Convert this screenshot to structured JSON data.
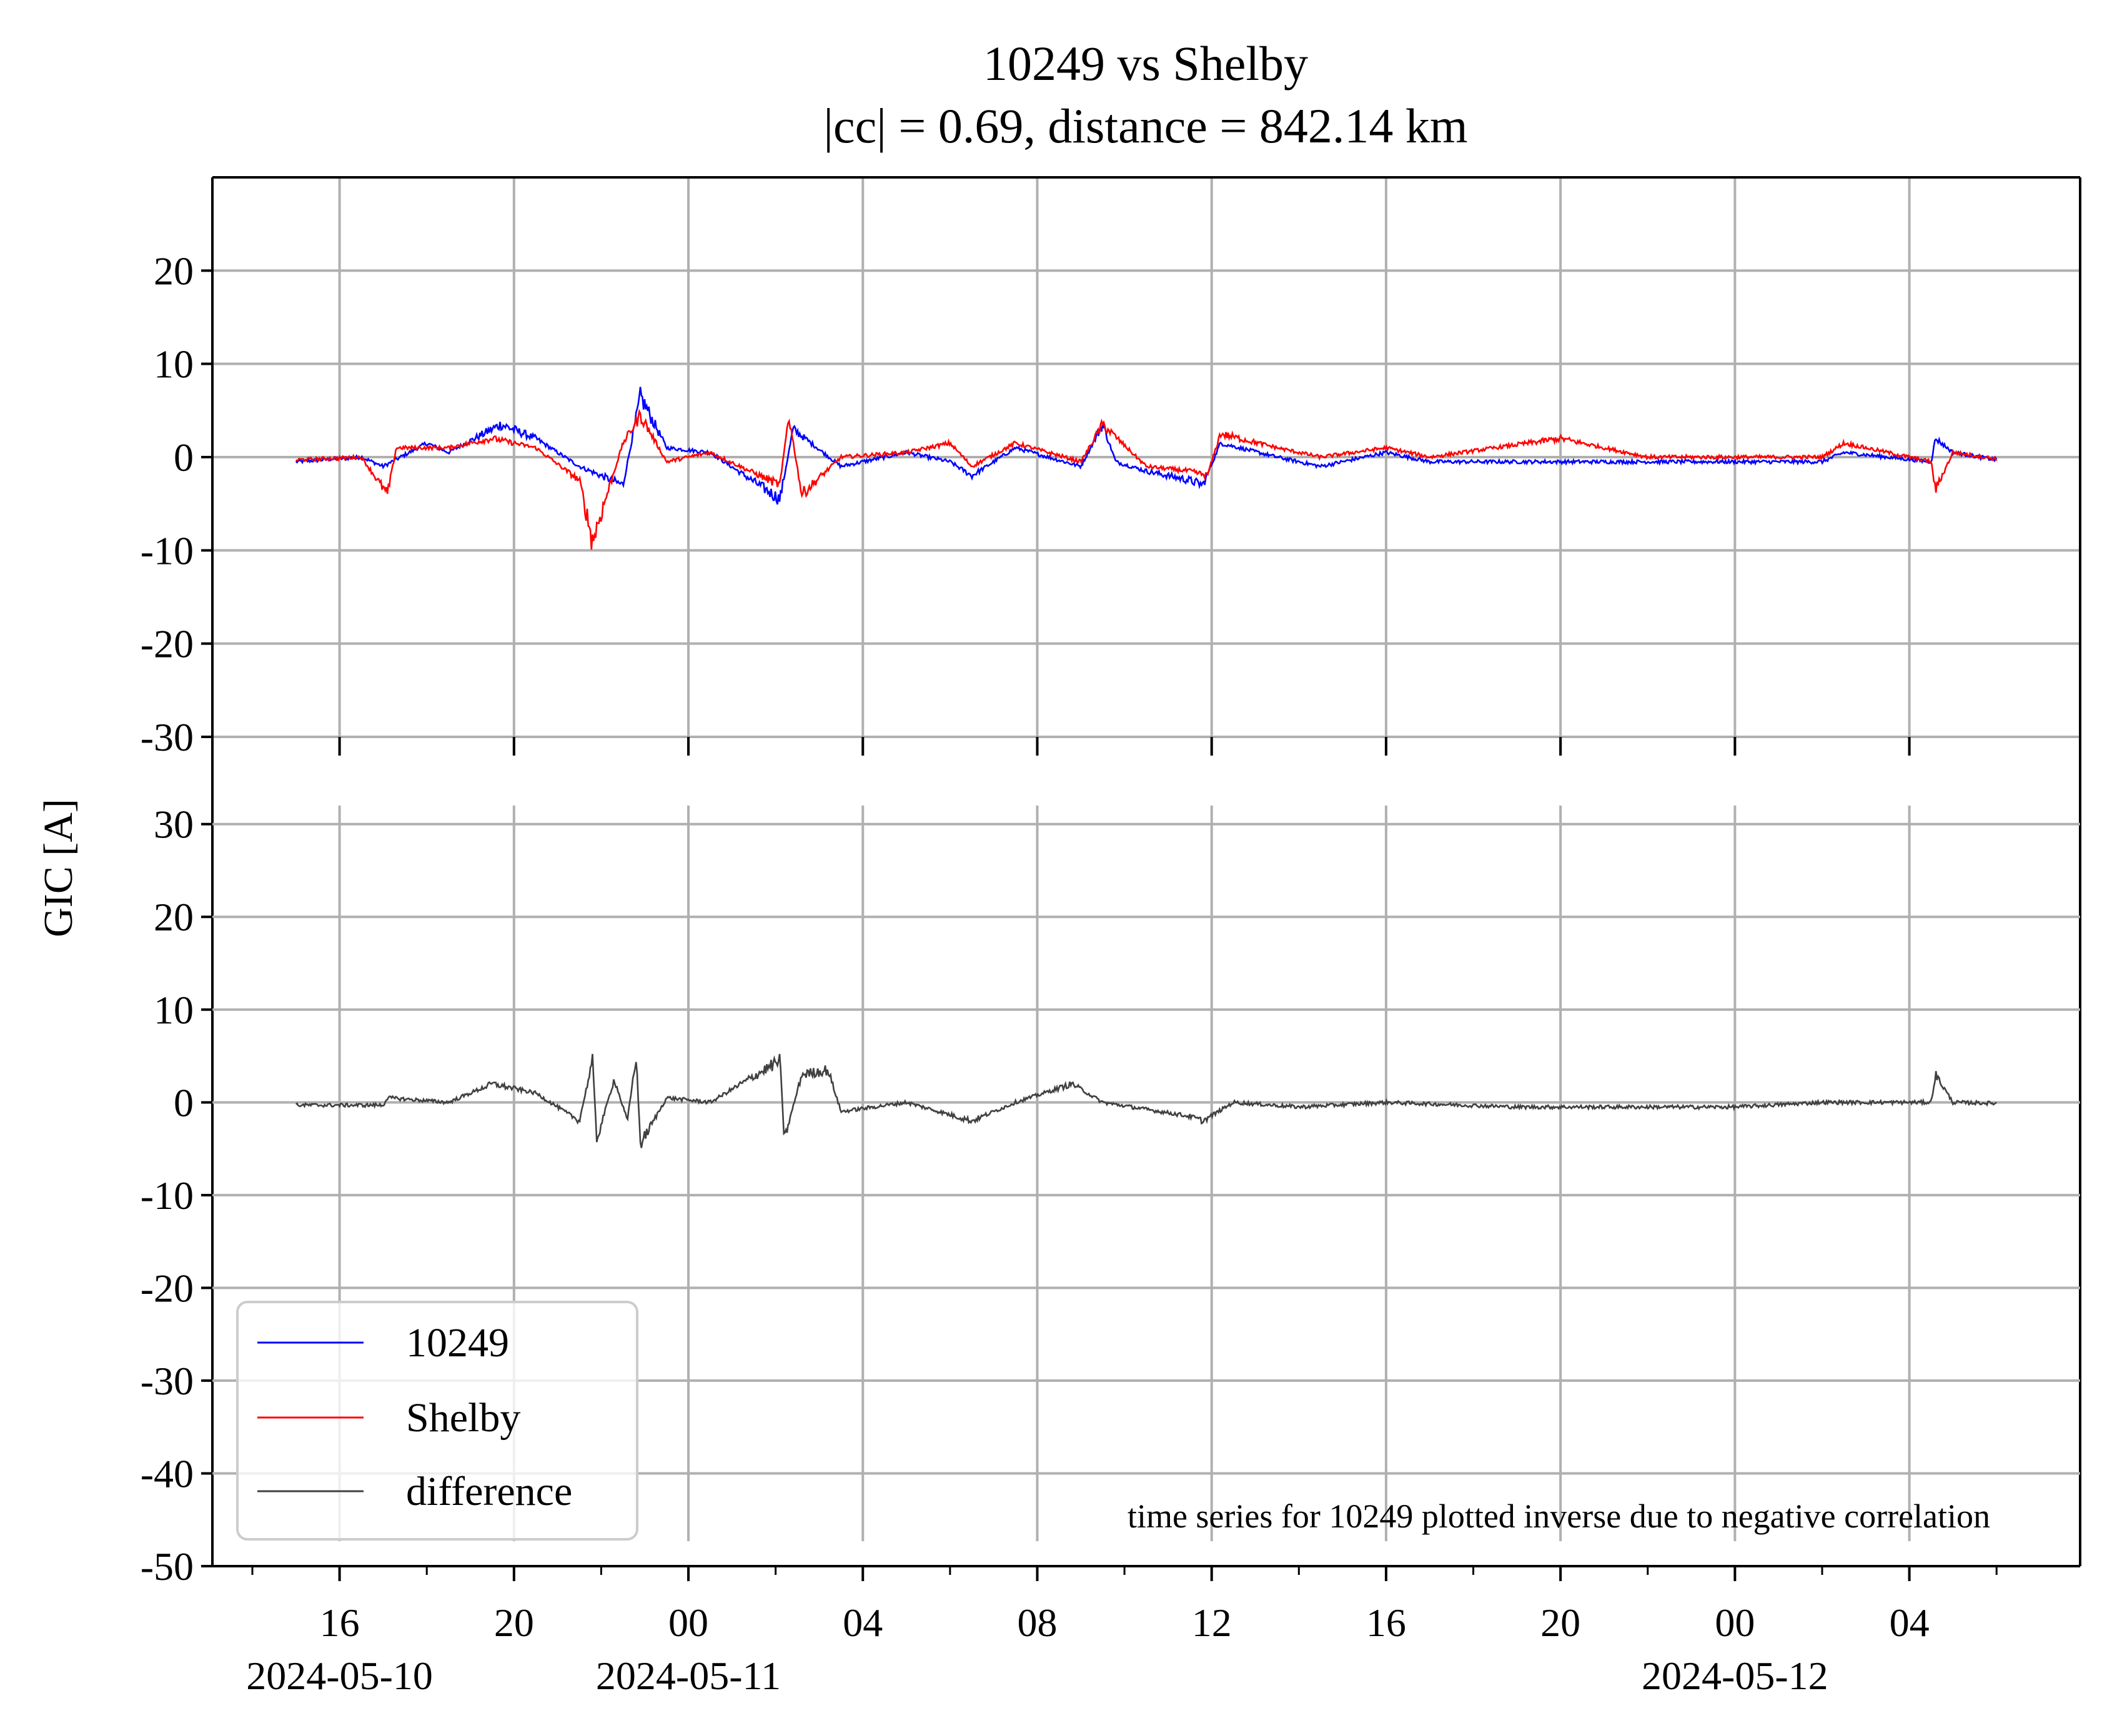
{
  "chart_data": {
    "type": "line",
    "title": [
      "10249 vs Shelby",
      "|cc| = 0.69, distance = 842.14 km"
    ],
    "ylabel": "GIC [A]",
    "annotation": "time series for 10249 plotted inverse due to negative correlation",
    "x_range": [
      "2024-05-10 13:05",
      "2024-05-13 07:55"
    ],
    "x_ticks": [
      "16",
      "20",
      "00",
      "04",
      "08",
      "12",
      "16",
      "20",
      "00",
      "04"
    ],
    "x_tick_hours": [
      16,
      20,
      24,
      28,
      32,
      36,
      40,
      44,
      48,
      52
    ],
    "x_date_labels": [
      {
        "label": "2024-05-10",
        "hour": 16
      },
      {
        "label": "2024-05-11",
        "hour": 24
      },
      {
        "label": "2024-05-12",
        "hour": 48
      }
    ],
    "x_data_range_hours": [
      15,
      54
    ],
    "legend": {
      "placement": "lower-left",
      "entries": [
        {
          "label": "10249",
          "color": "#0000ff"
        },
        {
          "label": "Shelby",
          "color": "#ff0000"
        },
        {
          "label": "difference",
          "color": "#404040"
        }
      ]
    },
    "grid": true,
    "panels": [
      {
        "name": "top",
        "ylim": [
          -30,
          30
        ],
        "yticks": [
          "20",
          "10",
          "0",
          "-10",
          "-20",
          "-30"
        ],
        "ytick_values": [
          20,
          10,
          0,
          -10,
          -20,
          -30
        ],
        "series": [
          {
            "name": "10249",
            "color": "#0000ff",
            "keypoints": [
              [
                15.0,
                -0.5
              ],
              [
                16.5,
                0
              ],
              [
                17.0,
                -1.0
              ],
              [
                18.0,
                1.5
              ],
              [
                18.5,
                0.5
              ],
              [
                19.7,
                3.5
              ],
              [
                20.5,
                2.0
              ],
              [
                21.5,
                -1.0
              ],
              [
                22.5,
                -3.0
              ],
              [
                22.9,
                6.5
              ],
              [
                23.5,
                1.0
              ],
              [
                24.5,
                0.5
              ],
              [
                26.1,
                -4.5
              ],
              [
                26.4,
                3.0
              ],
              [
                27.5,
                -1.0
              ],
              [
                29.0,
                0.5
              ],
              [
                30.0,
                -0.5
              ],
              [
                30.5,
                -2.0
              ],
              [
                31.5,
                1.0
              ],
              [
                33.0,
                -1.0
              ],
              [
                33.5,
                3.5
              ],
              [
                33.8,
                -0.5
              ],
              [
                34.5,
                -1.5
              ],
              [
                35.5,
                -2.5
              ],
              [
                35.8,
                -3.0
              ],
              [
                36.2,
                1.5
              ],
              [
                37.5,
                0
              ],
              [
                38.5,
                -1.0
              ],
              [
                40.0,
                0.5
              ],
              [
                41.0,
                -0.5
              ],
              [
                43.5,
                -0.5
              ],
              [
                46.0,
                -0.5
              ],
              [
                48.0,
                -0.5
              ],
              [
                50.0,
                -0.5
              ],
              [
                50.5,
                0.5
              ],
              [
                52.5,
                -0.5
              ],
              [
                52.6,
                2.0
              ],
              [
                53.0,
                0.5
              ],
              [
                54.0,
                -0.3
              ]
            ]
          },
          {
            "name": "Shelby",
            "color": "#ff0000",
            "keypoints": [
              [
                15.0,
                -0.3
              ],
              [
                16.5,
                0
              ],
              [
                17.1,
                -4.0
              ],
              [
                17.3,
                1.0
              ],
              [
                18.5,
                1.0
              ],
              [
                19.5,
                2.0
              ],
              [
                20.5,
                1.0
              ],
              [
                21.5,
                -2.5
              ],
              [
                21.8,
                -9.0
              ],
              [
                22.5,
                1.5
              ],
              [
                22.9,
                4.5
              ],
              [
                23.5,
                -0.5
              ],
              [
                24.5,
                0.5
              ],
              [
                26.1,
                -3.0
              ],
              [
                26.3,
                4.5
              ],
              [
                26.6,
                -4.0
              ],
              [
                27.5,
                0
              ],
              [
                29.0,
                0.5
              ],
              [
                30.0,
                1.5
              ],
              [
                30.5,
                -1.0
              ],
              [
                31.5,
                1.5
              ],
              [
                33.0,
                -0.5
              ],
              [
                33.5,
                3.5
              ],
              [
                34.5,
                -1.0
              ],
              [
                35.5,
                -1.5
              ],
              [
                35.9,
                -2.0
              ],
              [
                36.2,
                2.5
              ],
              [
                37.5,
                1.0
              ],
              [
                38.5,
                0
              ],
              [
                40.0,
                1.0
              ],
              [
                41.0,
                0
              ],
              [
                44.0,
                2.0
              ],
              [
                46.0,
                0
              ],
              [
                48.0,
                0
              ],
              [
                50.0,
                0
              ],
              [
                50.5,
                1.5
              ],
              [
                52.5,
                -0.5
              ],
              [
                52.6,
                -3.5
              ],
              [
                53.0,
                0.5
              ],
              [
                54.0,
                -0.2
              ]
            ]
          }
        ]
      },
      {
        "name": "bottom",
        "ylim": [
          -50,
          32
        ],
        "yticks": [
          "30",
          "20",
          "10",
          "0",
          "-10",
          "-20",
          "-30",
          "-40",
          "-50"
        ],
        "ytick_values": [
          30,
          20,
          10,
          0,
          -10,
          -20,
          -30,
          -40,
          -50
        ],
        "series": [
          {
            "name": "difference",
            "color": "#404040",
            "keypoints": [
              [
                15.0,
                -0.3
              ],
              [
                17.0,
                -0.3
              ],
              [
                17.1,
                0.5
              ],
              [
                18.5,
                0
              ],
              [
                19.5,
                2.0
              ],
              [
                20.5,
                1.0
              ],
              [
                21.5,
                -2.0
              ],
              [
                21.8,
                4.5
              ],
              [
                21.9,
                -4.0
              ],
              [
                22.3,
                2.5
              ],
              [
                22.6,
                -2.0
              ],
              [
                22.8,
                5.0
              ],
              [
                22.9,
                -4.5
              ],
              [
                23.5,
                0.5
              ],
              [
                24.5,
                0
              ],
              [
                26.1,
                4.5
              ],
              [
                26.2,
                -4.0
              ],
              [
                26.6,
                3.0
              ],
              [
                27.2,
                3.5
              ],
              [
                27.5,
                -1.0
              ],
              [
                29.0,
                0
              ],
              [
                30.5,
                -2.0
              ],
              [
                31.5,
                0
              ],
              [
                32.8,
                2.0
              ],
              [
                33.5,
                0
              ],
              [
                35.5,
                -1.5
              ],
              [
                35.8,
                -2.0
              ],
              [
                36.5,
                0
              ],
              [
                38.0,
                -0.5
              ],
              [
                40.0,
                0
              ],
              [
                43.0,
                -0.5
              ],
              [
                46.0,
                -0.5
              ],
              [
                48.0,
                -0.5
              ],
              [
                50.0,
                0
              ],
              [
                52.5,
                0
              ],
              [
                52.6,
                3.0
              ],
              [
                53.0,
                0
              ],
              [
                54.0,
                -0.1
              ]
            ]
          }
        ]
      }
    ]
  }
}
